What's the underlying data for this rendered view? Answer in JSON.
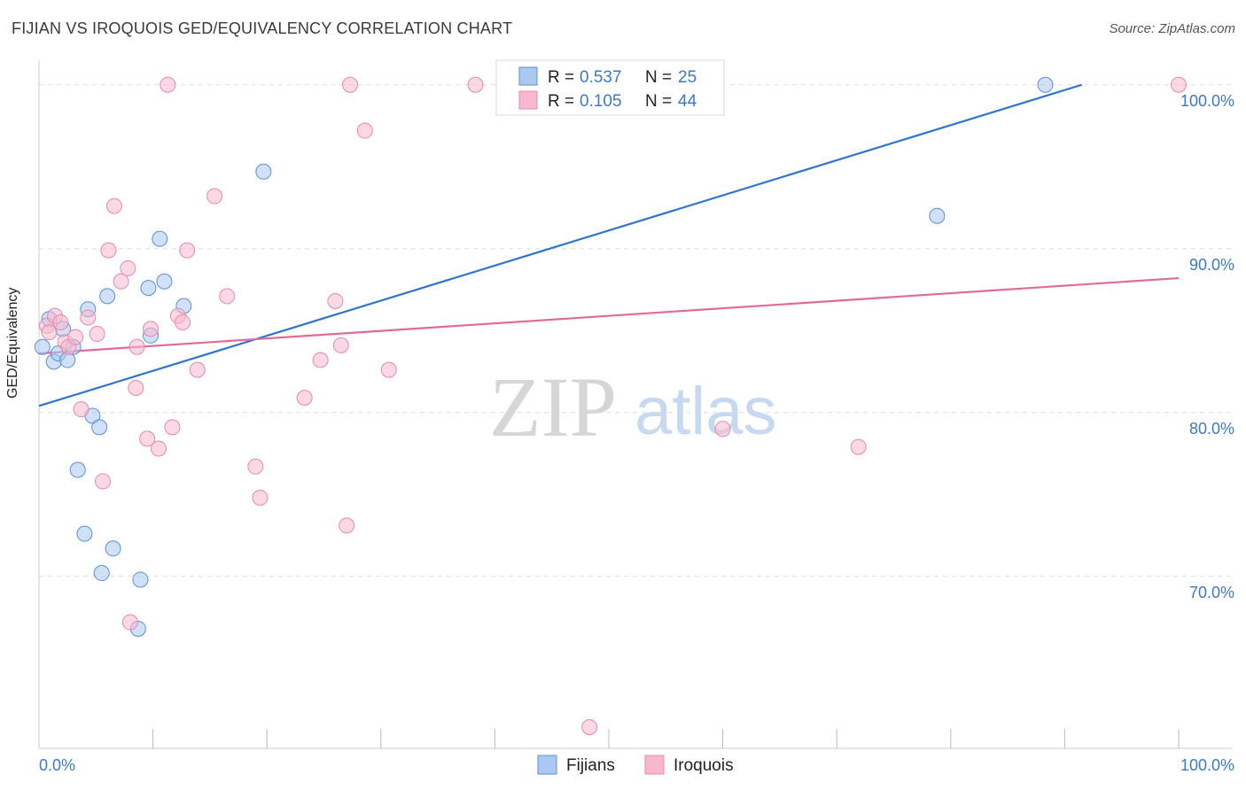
{
  "title": "FIJIAN VS IROQUOIS GED/EQUIVALENCY CORRELATION CHART",
  "source": "Source: ZipAtlas.com",
  "watermark": {
    "zip": "ZIP",
    "atlas": "atlas"
  },
  "colors": {
    "fijians_fill": "#aac8f0",
    "fijians_stroke": "#5b8fd6",
    "fijians_line": "#2f74d0",
    "iroquois_fill": "#f7b8cc",
    "iroquois_stroke": "#e58aa9",
    "iroquois_line": "#e06b96",
    "tick_label": "#3d78c8",
    "grid": "#dddddd"
  },
  "legend": {
    "rows": [
      {
        "series": "fijians",
        "r_label": "R = ",
        "r_value": "0.537",
        "n_label": "N = ",
        "n_value": "25"
      },
      {
        "series": "iroquois",
        "r_label": "R = ",
        "r_value": "0.105",
        "n_label": "N = ",
        "n_value": "44"
      }
    ]
  },
  "chart_data": {
    "type": "scatter",
    "title": "FIJIAN VS IROQUOIS GED/EQUIVALENCY CORRELATION CHART",
    "xlabel": "",
    "ylabel": "GED/Equivalency",
    "xlim": [
      0,
      100
    ],
    "ylim": [
      59.5,
      101.5
    ],
    "x_tick_labels": [
      {
        "value": 0,
        "label": "0.0%"
      },
      {
        "value": 100,
        "label": "100.0%"
      }
    ],
    "x_minor_ticks": [
      10,
      20,
      30,
      40,
      50,
      60,
      70,
      80,
      90
    ],
    "y_ticks": [
      {
        "value": 100,
        "label": "100.0%"
      },
      {
        "value": 90,
        "label": "90.0%"
      },
      {
        "value": 80,
        "label": "80.0%"
      },
      {
        "value": 70,
        "label": "70.0%"
      }
    ],
    "series": [
      {
        "name": "Fijians",
        "key": "fijians",
        "trend": {
          "x": [
            0,
            91.5
          ],
          "y": [
            80.4,
            100.0
          ]
        },
        "points": [
          {
            "x": 0.3,
            "y": 84.0
          },
          {
            "x": 0.9,
            "y": 85.7
          },
          {
            "x": 1.3,
            "y": 83.1
          },
          {
            "x": 1.7,
            "y": 83.6
          },
          {
            "x": 2.1,
            "y": 85.1
          },
          {
            "x": 2.5,
            "y": 83.2
          },
          {
            "x": 3.0,
            "y": 84.0
          },
          {
            "x": 3.4,
            "y": 76.5
          },
          {
            "x": 4.0,
            "y": 72.6
          },
          {
            "x": 4.3,
            "y": 86.3
          },
          {
            "x": 4.7,
            "y": 79.8
          },
          {
            "x": 5.3,
            "y": 79.1
          },
          {
            "x": 5.5,
            "y": 70.2
          },
          {
            "x": 6.0,
            "y": 87.1
          },
          {
            "x": 6.5,
            "y": 71.7
          },
          {
            "x": 8.7,
            "y": 66.8
          },
          {
            "x": 8.9,
            "y": 69.8
          },
          {
            "x": 9.6,
            "y": 87.6
          },
          {
            "x": 9.8,
            "y": 84.7
          },
          {
            "x": 10.6,
            "y": 90.6
          },
          {
            "x": 11.0,
            "y": 88.0
          },
          {
            "x": 12.7,
            "y": 86.5
          },
          {
            "x": 19.7,
            "y": 94.7
          },
          {
            "x": 78.8,
            "y": 92.0
          },
          {
            "x": 88.3,
            "y": 100.0
          }
        ]
      },
      {
        "name": "Iroquois",
        "key": "iroquois",
        "trend": {
          "x": [
            0,
            100
          ],
          "y": [
            83.6,
            88.2
          ]
        },
        "points": [
          {
            "x": 0.7,
            "y": 85.3
          },
          {
            "x": 0.9,
            "y": 84.9
          },
          {
            "x": 1.4,
            "y": 85.9
          },
          {
            "x": 1.9,
            "y": 85.5
          },
          {
            "x": 2.3,
            "y": 84.3
          },
          {
            "x": 2.6,
            "y": 84.0
          },
          {
            "x": 3.2,
            "y": 84.6
          },
          {
            "x": 3.7,
            "y": 80.2
          },
          {
            "x": 4.3,
            "y": 85.8
          },
          {
            "x": 5.1,
            "y": 84.8
          },
          {
            "x": 5.6,
            "y": 75.8
          },
          {
            "x": 6.1,
            "y": 89.9
          },
          {
            "x": 6.6,
            "y": 92.6
          },
          {
            "x": 7.2,
            "y": 88.0
          },
          {
            "x": 7.8,
            "y": 88.8
          },
          {
            "x": 8.5,
            "y": 81.5
          },
          {
            "x": 8.6,
            "y": 84.0
          },
          {
            "x": 9.5,
            "y": 78.4
          },
          {
            "x": 9.8,
            "y": 85.1
          },
          {
            "x": 10.5,
            "y": 77.8
          },
          {
            "x": 11.3,
            "y": 100.0
          },
          {
            "x": 11.7,
            "y": 79.1
          },
          {
            "x": 12.2,
            "y": 85.9
          },
          {
            "x": 12.6,
            "y": 85.5
          },
          {
            "x": 13.0,
            "y": 89.9
          },
          {
            "x": 13.9,
            "y": 82.6
          },
          {
            "x": 15.4,
            "y": 93.2
          },
          {
            "x": 16.5,
            "y": 87.1
          },
          {
            "x": 19.0,
            "y": 76.7
          },
          {
            "x": 19.4,
            "y": 74.8
          },
          {
            "x": 23.3,
            "y": 80.9
          },
          {
            "x": 24.7,
            "y": 83.2
          },
          {
            "x": 26.0,
            "y": 86.8
          },
          {
            "x": 26.5,
            "y": 84.1
          },
          {
            "x": 27.0,
            "y": 73.1
          },
          {
            "x": 27.3,
            "y": 100.0
          },
          {
            "x": 28.6,
            "y": 97.2
          },
          {
            "x": 30.7,
            "y": 82.6
          },
          {
            "x": 38.3,
            "y": 100.0
          },
          {
            "x": 8.0,
            "y": 67.2
          },
          {
            "x": 48.3,
            "y": 60.8
          },
          {
            "x": 60.0,
            "y": 79.0
          },
          {
            "x": 71.9,
            "y": 77.9
          },
          {
            "x": 100.0,
            "y": 100.0
          }
        ]
      }
    ],
    "legend_bottom": [
      "Fijians",
      "Iroquois"
    ]
  }
}
